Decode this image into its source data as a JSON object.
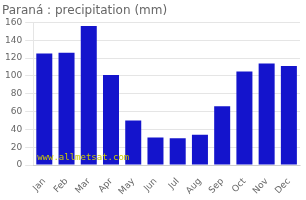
{
  "chart_data": {
    "type": "bar",
    "title": "Paraná : precipitation (mm)",
    "categories": [
      "Jan",
      "Feb",
      "Mar",
      "Apr",
      "May",
      "Jun",
      "Jul",
      "Aug",
      "Sep",
      "Oct",
      "Nov",
      "Dec"
    ],
    "values": [
      125,
      126,
      156,
      101,
      50,
      31,
      30,
      34,
      66,
      105,
      114,
      111
    ],
    "color": "#1414cc",
    "ylim": [
      0,
      160
    ],
    "yticks": [
      0,
      20,
      40,
      60,
      80,
      100,
      120,
      140,
      160
    ],
    "grid": true,
    "annotations": [
      "www.allmetsat.com"
    ]
  }
}
